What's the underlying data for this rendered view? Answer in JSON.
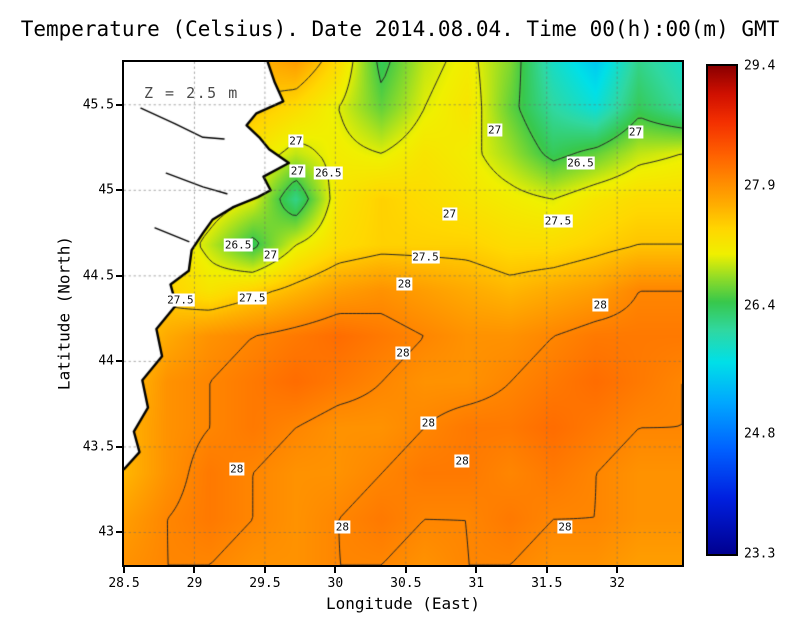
{
  "figure": {
    "title": "Temperature (Celsius). Date 2014.08.04. Time 00(h):00(m) GMT",
    "xlabel": "Longitude (East)",
    "ylabel": "Latitude (North)",
    "annotation": "Z = 2.5 m"
  },
  "chart_data": {
    "type": "heatmap",
    "title": "Temperature (Celsius). Date 2014.08.04. Time 00(h):00(m) GMT",
    "xlabel": "Longitude (East)",
    "ylabel": "Latitude (North)",
    "annotation": "Z = 2.5 m",
    "units": "Celsius",
    "x_range": [
      28.5,
      32.46
    ],
    "y_range": [
      42.81,
      45.75
    ],
    "x_ticks": [
      "28.5",
      "29",
      "29.5",
      "30",
      "30.5",
      "31",
      "31.5",
      "32"
    ],
    "y_ticks": [
      "43",
      "43.5",
      "44",
      "44.5",
      "45",
      "45.5"
    ],
    "grid_on": true,
    "contour_levels": [
      26.5,
      27,
      27.5,
      28
    ],
    "colorbar": {
      "min": 23.3,
      "max": 29.4,
      "tick_labels": [
        "29.4",
        "27.9",
        "26.4",
        "24.8",
        "23.3"
      ],
      "stops": [
        [
          23.3,
          "#000090"
        ],
        [
          24.0,
          "#0020e0"
        ],
        [
          24.6,
          "#0060ff"
        ],
        [
          25.2,
          "#00a8ff"
        ],
        [
          25.7,
          "#00e0e8"
        ],
        [
          26.1,
          "#30d8a0"
        ],
        [
          26.45,
          "#38c84c"
        ],
        [
          26.75,
          "#90dc28"
        ],
        [
          27.05,
          "#f0f000"
        ],
        [
          27.35,
          "#ffd800"
        ],
        [
          27.65,
          "#ffb000"
        ],
        [
          27.95,
          "#ff8c00"
        ],
        [
          28.3,
          "#ff6000"
        ],
        [
          28.7,
          "#f43000"
        ],
        [
          29.05,
          "#d01000"
        ],
        [
          29.4,
          "#8b0000"
        ]
      ]
    },
    "grid": {
      "nx": 14,
      "ny": 12,
      "rows_north_to_south": true,
      "values": [
        [
          27.5,
          27.5,
          27.5,
          27.6,
          27.8,
          27.3,
          26.4,
          26.9,
          27.1,
          26.7,
          25.9,
          25.5,
          26.2,
          25.9
        ],
        [
          27.4,
          27.4,
          27.4,
          27.5,
          27.3,
          27.0,
          26.6,
          27.0,
          27.2,
          26.6,
          26.1,
          25.8,
          26.4,
          26.1
        ],
        [
          27.3,
          27.3,
          27.3,
          27.2,
          26.9,
          27.1,
          27.0,
          27.2,
          27.1,
          26.8,
          26.4,
          26.6,
          26.9,
          27.0
        ],
        [
          27.3,
          27.3,
          27.2,
          27.0,
          26.2,
          27.2,
          27.4,
          27.3,
          27.2,
          27.1,
          27.0,
          27.2,
          27.3,
          27.3
        ],
        [
          27.4,
          27.3,
          26.9,
          26.4,
          27.0,
          27.3,
          27.4,
          27.4,
          27.4,
          27.3,
          27.3,
          27.4,
          27.5,
          27.5
        ],
        [
          27.4,
          27.4,
          27.2,
          27.4,
          27.6,
          27.8,
          27.9,
          27.8,
          27.7,
          27.6,
          27.7,
          27.8,
          28.0,
          28.0
        ],
        [
          27.4,
          27.7,
          27.9,
          28.0,
          28.1,
          28.2,
          28.1,
          28.0,
          27.9,
          27.9,
          28.0,
          28.1,
          28.1,
          28.1
        ],
        [
          27.5,
          27.9,
          28.0,
          28.1,
          28.2,
          28.1,
          28.0,
          27.9,
          27.9,
          28.0,
          28.1,
          28.2,
          28.1,
          28.0
        ],
        [
          27.6,
          27.9,
          28.0,
          28.1,
          28.0,
          27.9,
          27.9,
          28.0,
          28.1,
          28.1,
          28.2,
          28.1,
          28.0,
          28.0
        ],
        [
          27.6,
          27.9,
          28.1,
          28.0,
          27.9,
          27.9,
          28.0,
          28.1,
          28.1,
          28.0,
          28.1,
          28.0,
          27.9,
          27.9
        ],
        [
          27.8,
          28.0,
          28.1,
          28.0,
          27.9,
          28.0,
          28.1,
          28.0,
          28.0,
          28.1,
          28.0,
          28.0,
          27.9,
          27.9
        ],
        [
          27.9,
          28.0,
          28.0,
          27.9,
          27.9,
          28.0,
          28.0,
          27.9,
          28.0,
          28.0,
          27.9,
          27.9,
          27.8,
          27.8
        ]
      ]
    },
    "contour_labels": [
      {
        "text": "27",
        "lon": 29.72,
        "lat": 45.29
      },
      {
        "text": "27",
        "lon": 31.13,
        "lat": 45.35
      },
      {
        "text": "27",
        "lon": 32.13,
        "lat": 45.34
      },
      {
        "text": "26.5",
        "lon": 31.74,
        "lat": 45.16
      },
      {
        "text": "27",
        "lon": 29.73,
        "lat": 45.11
      },
      {
        "text": "26.5",
        "lon": 29.95,
        "lat": 45.1
      },
      {
        "text": "26.5",
        "lon": 29.31,
        "lat": 44.68
      },
      {
        "text": "27",
        "lon": 29.54,
        "lat": 44.62
      },
      {
        "text": "27",
        "lon": 30.81,
        "lat": 44.86
      },
      {
        "text": "27.5",
        "lon": 31.58,
        "lat": 44.82
      },
      {
        "text": "27.5",
        "lon": 30.64,
        "lat": 44.61
      },
      {
        "text": "27.5",
        "lon": 28.9,
        "lat": 44.36
      },
      {
        "text": "27.5",
        "lon": 29.41,
        "lat": 44.37
      },
      {
        "text": "28",
        "lon": 30.49,
        "lat": 44.45
      },
      {
        "text": "28",
        "lon": 31.88,
        "lat": 44.33
      },
      {
        "text": "28",
        "lon": 30.48,
        "lat": 44.05
      },
      {
        "text": "28",
        "lon": 30.66,
        "lat": 43.64
      },
      {
        "text": "28",
        "lon": 30.9,
        "lat": 43.42
      },
      {
        "text": "28",
        "lon": 29.3,
        "lat": 43.37
      },
      {
        "text": "28",
        "lon": 30.05,
        "lat": 43.03
      },
      {
        "text": "28",
        "lon": 31.63,
        "lat": 43.03
      }
    ],
    "coastline": {
      "coast": [
        [
          29.52,
          45.75
        ],
        [
          29.57,
          45.63
        ],
        [
          29.63,
          45.52
        ],
        [
          29.44,
          45.45
        ],
        [
          29.37,
          45.38
        ],
        [
          29.46,
          45.31
        ],
        [
          29.53,
          45.24
        ],
        [
          29.67,
          45.16
        ],
        [
          29.49,
          45.08
        ],
        [
          29.54,
          45.0
        ],
        [
          29.45,
          44.96
        ],
        [
          29.27,
          44.9
        ],
        [
          29.13,
          44.83
        ],
        [
          29.06,
          44.75
        ],
        [
          28.98,
          44.65
        ],
        [
          28.96,
          44.53
        ],
        [
          28.83,
          44.45
        ],
        [
          28.87,
          44.33
        ],
        [
          28.73,
          44.19
        ],
        [
          28.77,
          44.03
        ],
        [
          28.63,
          43.89
        ],
        [
          28.67,
          43.73
        ],
        [
          28.57,
          43.59
        ],
        [
          28.61,
          43.47
        ],
        [
          28.5,
          43.37
        ]
      ],
      "fill_close": [
        [
          28.5,
          45.75
        ]
      ],
      "limans": [
        [
          [
            28.62,
            45.48
          ],
          [
            28.86,
            45.39
          ],
          [
            29.06,
            45.31
          ],
          [
            29.21,
            45.3
          ]
        ],
        [
          [
            28.8,
            45.1
          ],
          [
            29.06,
            45.02
          ],
          [
            29.23,
            44.98
          ]
        ],
        [
          [
            28.72,
            44.78
          ],
          [
            28.96,
            44.7
          ]
        ]
      ]
    }
  }
}
